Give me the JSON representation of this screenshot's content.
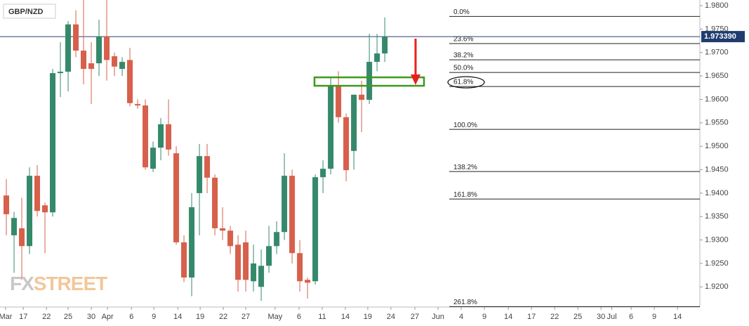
{
  "chart_data": {
    "type": "candlestick",
    "title": "GBP/NZD",
    "up_color": "#35896b",
    "down_color": "#d6604b",
    "open": [
      1.9395,
      1.931,
      1.9325,
      1.9287,
      1.9437,
      1.9374,
      1.9359,
      1.9656,
      1.9659,
      1.976,
      1.9704,
      1.9677,
      1.9677,
      1.9734,
      1.9692,
      1.9665,
      1.9684,
      1.959,
      1.9587,
      1.9452,
      1.9497,
      1.9547,
      1.9485,
      1.9295,
      1.922,
      1.94,
      1.9479,
      1.9433,
      1.9325,
      1.932,
      1.929,
      1.9295,
      1.9212,
      1.92,
      1.9245,
      1.9287,
      1.9317,
      1.9437,
      1.9272,
      1.9215,
      1.9212,
      1.9434,
      1.9452,
      1.9629,
      1.9562,
      1.949,
      1.961,
      1.9599,
      1.968,
      1.9698
    ],
    "high": [
      1.943,
      1.936,
      1.939,
      1.9455,
      1.946,
      1.938,
      1.9665,
      1.9722,
      1.9767,
      1.979,
      1.9812,
      1.9722,
      1.977,
      1.9812,
      1.97,
      1.969,
      1.971,
      1.96,
      1.96,
      1.951,
      1.956,
      1.96,
      1.95,
      1.931,
      1.94,
      1.9505,
      1.9505,
      1.944,
      1.937,
      1.933,
      1.931,
      1.932,
      1.929,
      1.928,
      1.933,
      1.934,
      1.9485,
      1.945,
      1.93,
      1.922,
      1.944,
      1.947,
      1.9645,
      1.966,
      1.957,
      1.961,
      1.964,
      1.974,
      1.974,
      1.9775
    ],
    "low": [
      1.931,
      1.923,
      1.9215,
      1.927,
      1.935,
      1.9272,
      1.935,
      1.9605,
      1.9617,
      1.969,
      1.9632,
      1.959,
      1.965,
      1.964,
      1.965,
      1.965,
      1.9585,
      1.958,
      1.945,
      1.9445,
      1.947,
      1.948,
      1.929,
      1.921,
      1.918,
      1.931,
      1.94,
      1.931,
      1.93,
      1.927,
      1.919,
      1.919,
      1.919,
      1.917,
      1.923,
      1.927,
      1.93,
      1.925,
      1.919,
      1.9175,
      1.9205,
      1.94,
      1.944,
      1.955,
      1.9425,
      1.945,
      1.953,
      1.959,
      1.966,
      1.968
    ],
    "close": [
      1.9355,
      1.9347,
      1.9287,
      1.9437,
      1.9362,
      1.9359,
      1.9656,
      1.9659,
      1.976,
      1.9704,
      1.9665,
      1.9665,
      1.9734,
      1.9684,
      1.967,
      1.968,
      1.9592,
      1.9587,
      1.9455,
      1.9497,
      1.9547,
      1.9493,
      1.9295,
      1.922,
      1.937,
      1.9479,
      1.9433,
      1.9325,
      1.932,
      1.9287,
      1.9215,
      1.9215,
      1.925,
      1.9245,
      1.9287,
      1.9317,
      1.9437,
      1.9272,
      1.9212,
      1.9209,
      1.9434,
      1.9452,
      1.9629,
      1.9562,
      1.9449,
      1.961,
      1.9599,
      1.968,
      1.9698,
      1.9734
    ],
    "xlim": [
      -0.82,
      89.8
    ],
    "xticks": [
      {
        "value": -0.1,
        "label": "Mar"
      },
      {
        "value": 2.2,
        "label": "17"
      },
      {
        "value": 5.2,
        "label": "22"
      },
      {
        "value": 8,
        "label": "25"
      },
      {
        "value": 11,
        "label": "30"
      },
      {
        "value": 13.1,
        "label": "Apr"
      },
      {
        "value": 16.2,
        "label": "6"
      },
      {
        "value": 19.1,
        "label": "9"
      },
      {
        "value": 22.2,
        "label": "14"
      },
      {
        "value": 25.1,
        "label": "19"
      },
      {
        "value": 28.1,
        "label": "22"
      },
      {
        "value": 31,
        "label": "27"
      },
      {
        "value": 34.8,
        "label": "May"
      },
      {
        "value": 37.9,
        "label": "6"
      },
      {
        "value": 40.9,
        "label": "11"
      },
      {
        "value": 43.9,
        "label": "14"
      },
      {
        "value": 46.8,
        "label": "19"
      },
      {
        "value": 49.8,
        "label": "24"
      },
      {
        "value": 52.9,
        "label": "27"
      },
      {
        "value": 55.9,
        "label": "Jun"
      },
      {
        "value": 58.9,
        "label": "4"
      },
      {
        "value": 61.9,
        "label": "9"
      },
      {
        "value": 65,
        "label": "14"
      },
      {
        "value": 68,
        "label": "17"
      },
      {
        "value": 71,
        "label": "22"
      },
      {
        "value": 74,
        "label": "25"
      },
      {
        "value": 77,
        "label": "30"
      },
      {
        "value": 78.4,
        "label": "Jul"
      },
      {
        "value": 80.9,
        "label": "6"
      },
      {
        "value": 83.9,
        "label": "9"
      },
      {
        "value": 86.9,
        "label": "14"
      }
    ],
    "ylim": [
      1.9157,
      1.9812
    ],
    "yticks": [
      {
        "value": 1.92,
        "label": "1.9200"
      },
      {
        "value": 1.925,
        "label": "1.9250"
      },
      {
        "value": 1.93,
        "label": "1.9300"
      },
      {
        "value": 1.935,
        "label": "1.9350"
      },
      {
        "value": 1.94,
        "label": "1.9400"
      },
      {
        "value": 1.945,
        "label": "1.9450"
      },
      {
        "value": 1.95,
        "label": "1.9500"
      },
      {
        "value": 1.955,
        "label": "1.9550"
      },
      {
        "value": 1.96,
        "label": "1.9600"
      },
      {
        "value": 1.965,
        "label": "1.9650"
      },
      {
        "value": 1.97,
        "label": "1.9700"
      },
      {
        "value": 1.975,
        "label": "1.9750"
      },
      {
        "value": 1.98,
        "label": "1.9800"
      }
    ],
    "current_price": {
      "value": 1.97339,
      "label": "1.973390"
    },
    "fib_levels": [
      {
        "label": "0.0%",
        "value": 1.9777
      },
      {
        "label": "23.6%",
        "value": 1.9719
      },
      {
        "label": "38.2%",
        "value": 1.96845
      },
      {
        "label": "50.0%",
        "value": 1.96575
      },
      {
        "label": "61.8%",
        "value": 1.96275
      },
      {
        "label": "100.0%",
        "value": 1.9536
      },
      {
        "label": "138.2%",
        "value": 1.9446
      },
      {
        "label": "161.8%",
        "value": 1.93875
      },
      {
        "label": "261.8%",
        "value": 1.9158
      }
    ],
    "highlight_zone": [
      1.9629,
      1.9647
    ],
    "watermark": [
      "FX",
      "STREET"
    ]
  }
}
